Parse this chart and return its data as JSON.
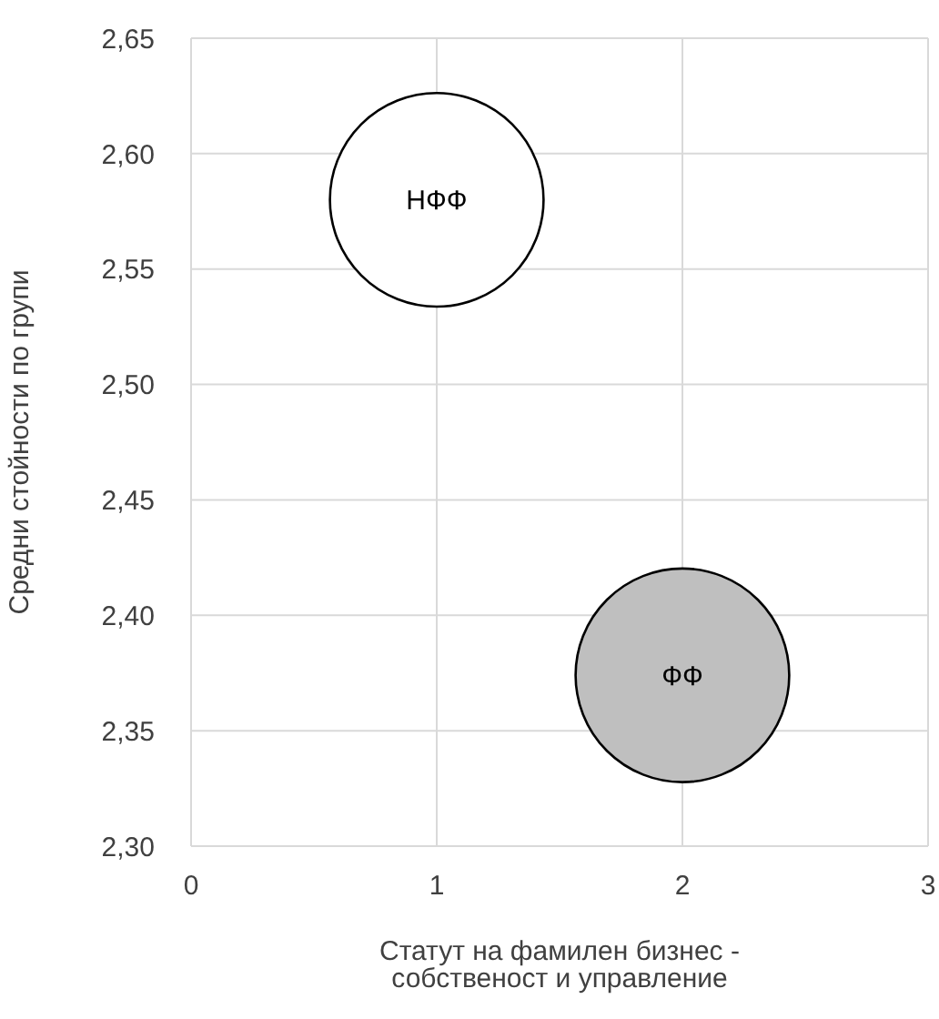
{
  "chart_data": {
    "type": "bubble",
    "xlabel": "Статут на фамилен бизнес - собственост и управление",
    "ylabel": "Средни стойности по групи",
    "xlim": [
      0,
      3
    ],
    "xticks": [
      0,
      1,
      2,
      3
    ],
    "ylim": [
      2.3,
      2.65
    ],
    "yticks": [
      {
        "value": 2.3,
        "label": "2,30"
      },
      {
        "value": 2.35,
        "label": "2,35"
      },
      {
        "value": 2.4,
        "label": "2,40"
      },
      {
        "value": 2.45,
        "label": "2,45"
      },
      {
        "value": 2.5,
        "label": "2,50"
      },
      {
        "value": 2.55,
        "label": "2,55"
      },
      {
        "value": 2.6,
        "label": "2,60"
      },
      {
        "value": 2.65,
        "label": "2,65"
      }
    ],
    "grid": true,
    "series": [
      {
        "name": "НФФ",
        "color": "#ffffff",
        "x": [
          1
        ],
        "values": [
          2.58
        ],
        "sizes": [
          1
        ]
      },
      {
        "name": "ФФ",
        "color": "#bfbfbf",
        "x": [
          2
        ],
        "values": [
          2.374
        ],
        "sizes": [
          1
        ]
      }
    ]
  }
}
